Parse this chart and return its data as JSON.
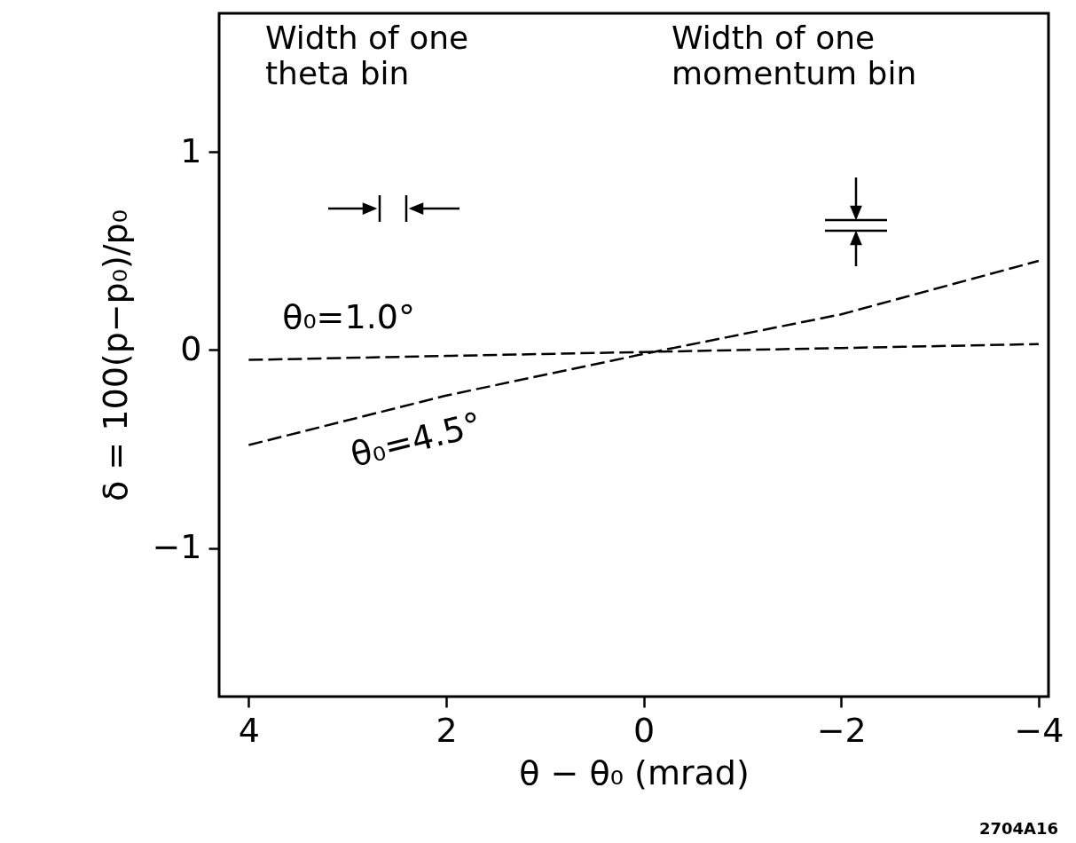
{
  "chart_data": {
    "type": "line",
    "xlabel": "θ − θ₀ (mrad)",
    "ylabel": "δ = 100(p−p₀)/p₀",
    "x": [
      4,
      2,
      0,
      -2,
      -4
    ],
    "series": [
      {
        "name": "θ₀=1.0°",
        "color": "#000000",
        "values": [
          -0.05,
          -0.03,
          -0.01,
          0.01,
          0.03
        ]
      },
      {
        "name": "θ₀=4.5°",
        "color": "#000000",
        "values": [
          -0.48,
          -0.23,
          -0.02,
          0.18,
          0.45
        ]
      }
    ],
    "xlim": [
      4.3,
      -4.1
    ],
    "xticks": [
      4,
      2,
      0,
      -2,
      -4
    ],
    "ylim": [
      -1.75,
      1.7
    ],
    "yticks": [
      -1,
      0,
      1
    ],
    "grid": false,
    "legend": false,
    "marker": "none",
    "line_style": "dashed",
    "annotations": [
      "Width of one theta bin",
      "Width of one momentum bin",
      "2704A16"
    ]
  }
}
